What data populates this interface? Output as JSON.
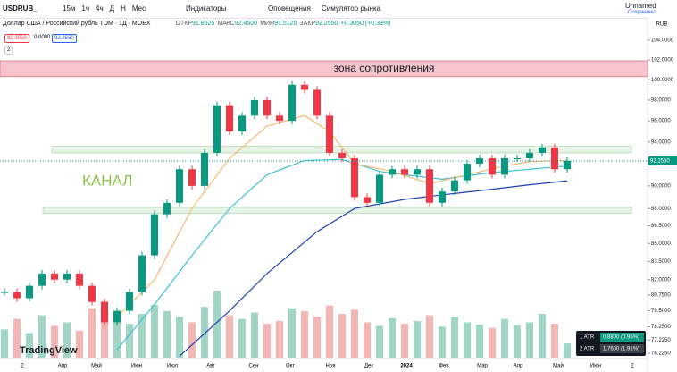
{
  "toolbar": {
    "symbol": "USDRUB_",
    "intervals": [
      "15м",
      "1ч",
      "4ч",
      "Д",
      "Н",
      "Мес"
    ],
    "indicators": "Индикаторы",
    "alerts": "Оповещения",
    "replay": "Симулятор рынка",
    "layout_name": "Unnamed",
    "saved": "Сохранено"
  },
  "legend": {
    "title": "Доллар США / Российский рубль ТОМ · 1Д · MOEX",
    "ohlc": [
      {
        "label": "ОТКР",
        "value": "91.8525"
      },
      {
        "label": "МАКС",
        "value": "92.4500"
      },
      {
        "label": "МИН",
        "value": "91.5125"
      },
      {
        "label": "ЗАКР",
        "value": "92.2550"
      }
    ],
    "change": "+0.3050 (+0.33%)",
    "badges": [
      "92.2550",
      "0.0000",
      "92.2550"
    ],
    "count": "2"
  },
  "chart_data": {
    "type": "candlestick",
    "log_scale": true,
    "currency": "RUB",
    "last_price_label": "92.2550",
    "last_price": 92.255,
    "annotations": [
      {
        "text": "зона сопротивления",
        "ylim": [
          100.3,
          101.9
        ],
        "color": "#f7c6cc"
      },
      {
        "text": "КАНАЛ"
      }
    ],
    "channel_bands": [
      [
        93.0,
        93.6
      ],
      [
        87.6,
        88.1
      ]
    ],
    "close": [
      81,
      80.5,
      81.5,
      82.5,
      82,
      82.5,
      81.5,
      80.2,
      78.6,
      79.5,
      81,
      84,
      87.5,
      88.5,
      91.5,
      90,
      93,
      97.5,
      95,
      96.5,
      98,
      96.5,
      96,
      99.5,
      99,
      96.5,
      93,
      92.5,
      89,
      88.5,
      91,
      91.5,
      91,
      91.5,
      88.5,
      89.5,
      90.5,
      92,
      92.5,
      91,
      92.5,
      92.5,
      93,
      93.5,
      91.5,
      92.255
    ],
    "volume": [
      40,
      55,
      35,
      60,
      45,
      50,
      38,
      70,
      80,
      52,
      48,
      62,
      75,
      66,
      58,
      50,
      72,
      95,
      60,
      55,
      64,
      48,
      52,
      70,
      66,
      58,
      74,
      62,
      68,
      50,
      45,
      56,
      48,
      52,
      60,
      44,
      58,
      50,
      47,
      42,
      55,
      46,
      50,
      62,
      48,
      20
    ],
    "moving_averages": [
      {
        "name": "MA200",
        "color": "#1a3fb0",
        "x": [
          14,
          18,
          21,
          25,
          28,
          32,
          35,
          39,
          42,
          45
        ],
        "values": [
          76,
          79.5,
          82.5,
          86,
          88,
          88.8,
          89.2,
          89.7,
          90.1,
          90.45
        ]
      },
      {
        "name": "MA100",
        "color": "#3fc1d0",
        "x": [
          9,
          12,
          15,
          18,
          21,
          24,
          27,
          30,
          32,
          35,
          39,
          42,
          45
        ],
        "values": [
          76.5,
          80,
          84,
          88,
          91,
          92.3,
          92.4,
          91.3,
          91,
          90.6,
          91.2,
          91.5,
          91.8
        ]
      },
      {
        "name": "MA50",
        "color": "#f2b872",
        "x": [
          9,
          12,
          15,
          18,
          21,
          24,
          26,
          28,
          31,
          34,
          37,
          40,
          42,
          45
        ],
        "values": [
          79,
          82,
          88,
          92.5,
          95.5,
          96.5,
          95,
          92,
          91.3,
          90.2,
          91,
          91.8,
          92.2,
          92.3
        ]
      }
    ],
    "ylim": [
      76.225,
      104
    ],
    "yticks": [
      {
        "value": 104,
        "label": "104.0000"
      },
      {
        "value": 102,
        "label": "102.0000"
      },
      {
        "value": 100,
        "label": "100.0000"
      },
      {
        "value": 98,
        "label": "98.0000"
      },
      {
        "value": 96,
        "label": "96.0000"
      },
      {
        "value": 94,
        "label": "94.0000"
      },
      {
        "value": 90,
        "label": "90.0000"
      },
      {
        "value": 88,
        "label": "88.0000"
      },
      {
        "value": 86.5,
        "label": "86.5000"
      },
      {
        "value": 85,
        "label": "85.0000"
      },
      {
        "value": 83.5,
        "label": "83.5000"
      },
      {
        "value": 82,
        "label": "82.0000"
      },
      {
        "value": 80.75,
        "label": "80.7500"
      },
      {
        "value": 79.5,
        "label": "79.5000"
      },
      {
        "value": 78.25,
        "label": "78.2500"
      },
      {
        "value": 77.225,
        "label": "77.2250"
      },
      {
        "value": 76.225,
        "label": "76.2250"
      }
    ],
    "time_labels": [
      "2",
      "Апр",
      "Май",
      "Июн",
      "Июл",
      "Авг",
      "Сен",
      "Окт",
      "Ноя",
      "Дек",
      "2024",
      "Фев",
      "Мар",
      "Апр",
      "Май",
      "Июн",
      "2"
    ]
  },
  "atr": [
    {
      "label": "1 ATR",
      "value": "0.8800 (0.95%)"
    },
    {
      "label": "2 ATR",
      "value": "1.7600 (1.91%)"
    }
  ],
  "brand": "TradingView"
}
